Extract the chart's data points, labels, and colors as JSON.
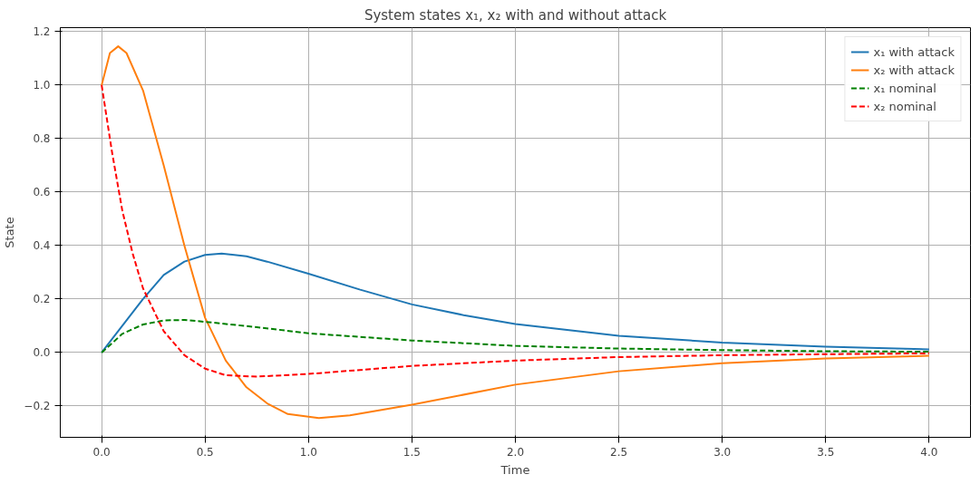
{
  "chart_data": {
    "type": "line",
    "title": "System states x₁, x₂ with and without attack",
    "xlabel": "Time",
    "ylabel": "State",
    "xlim": [
      -0.2,
      4.2
    ],
    "ylim": [
      -0.317,
      1.215
    ],
    "xticks": [
      {
        "value": 0,
        "label": "0.0"
      },
      0.5,
      {
        "value": 1,
        "label": "1.0"
      },
      1.5,
      {
        "value": 2,
        "label": "2.0"
      },
      2.5,
      {
        "value": 3,
        "label": "3.0"
      },
      3.5,
      {
        "value": 4,
        "label": "4.0"
      }
    ],
    "yticks": [
      {
        "value": -0.2,
        "label": "−0.2"
      },
      {
        "value": 0,
        "label": "0.0"
      },
      0.2,
      0.4,
      0.6,
      0.8,
      {
        "value": 1,
        "label": "1.0"
      },
      1.2
    ],
    "grid": true,
    "legend": "top right",
    "series": [
      {
        "name": "x₁ with attack",
        "color": "#1f77b4",
        "line_style": "solid",
        "x": [
          0,
          0.1,
          0.2,
          0.3,
          0.4,
          0.5,
          0.58,
          0.7,
          0.8,
          1.0,
          1.25,
          1.5,
          1.75,
          2.0,
          2.5,
          3.0,
          3.5,
          4.0
        ],
        "values": [
          0,
          0.1,
          0.2,
          0.29,
          0.34,
          0.365,
          0.37,
          0.36,
          0.34,
          0.295,
          0.235,
          0.18,
          0.14,
          0.107,
          0.063,
          0.037,
          0.022,
          0.012
        ]
      },
      {
        "name": "x₂ with attack",
        "color": "#ff7f0e",
        "line_style": "solid",
        "x": [
          0,
          0.04,
          0.08,
          0.12,
          0.2,
          0.3,
          0.4,
          0.5,
          0.6,
          0.7,
          0.8,
          0.9,
          1.05,
          1.2,
          1.5,
          2.0,
          2.5,
          3.0,
          3.5,
          4.0
        ],
        "values": [
          1.0,
          1.12,
          1.145,
          1.12,
          0.98,
          0.7,
          0.4,
          0.13,
          -0.03,
          -0.13,
          -0.19,
          -0.23,
          -0.245,
          -0.235,
          -0.195,
          -0.12,
          -0.07,
          -0.04,
          -0.022,
          -0.012
        ]
      },
      {
        "name": "x₁ nominal",
        "color": "#008000",
        "line_style": "dashed",
        "x": [
          0,
          0.1,
          0.2,
          0.3,
          0.4,
          0.5,
          0.75,
          1.0,
          1.5,
          2.0,
          2.5,
          3.0,
          3.5,
          4.0
        ],
        "values": [
          0,
          0.07,
          0.105,
          0.12,
          0.122,
          0.115,
          0.095,
          0.072,
          0.045,
          0.025,
          0.015,
          0.009,
          0.005,
          0.003
        ]
      },
      {
        "name": "x₂ nominal",
        "color": "#ff0000",
        "line_style": "dashed",
        "x": [
          0,
          0.05,
          0.1,
          0.15,
          0.2,
          0.3,
          0.4,
          0.5,
          0.6,
          0.75,
          1.0,
          1.5,
          2.0,
          2.5,
          3.0,
          3.5,
          4.0
        ],
        "values": [
          1.0,
          0.75,
          0.53,
          0.37,
          0.24,
          0.08,
          -0.01,
          -0.06,
          -0.085,
          -0.09,
          -0.08,
          -0.05,
          -0.03,
          -0.017,
          -0.01,
          -0.006,
          -0.003
        ]
      }
    ]
  }
}
